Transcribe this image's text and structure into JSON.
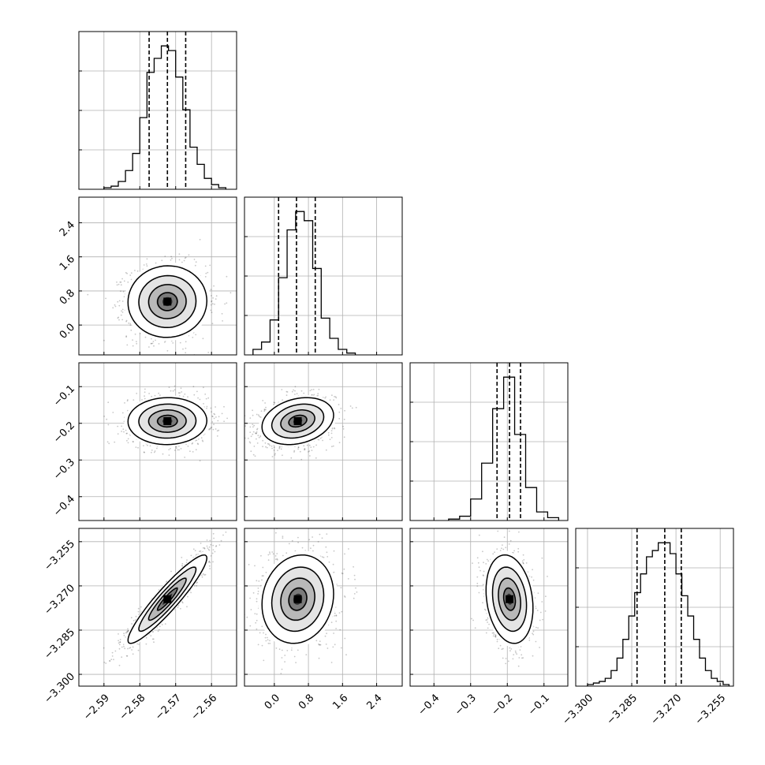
{
  "chart_data": {
    "type": "corner",
    "title": "",
    "grid": true,
    "parameters": [
      {
        "index": 0,
        "range": [
          -2.597,
          -2.553
        ],
        "median": -2.5723,
        "q16": -2.5774,
        "q84": -2.5672,
        "ticks": [
          -2.59,
          -2.58,
          -2.57,
          -2.56
        ],
        "tick_labels": [
          "−2.59",
          "−2.58",
          "−2.57",
          "−2.56"
        ],
        "hist": {
          "edges": [
            -2.59,
            -2.588,
            -2.586,
            -2.584,
            -2.582,
            -2.58,
            -2.578,
            -2.576,
            -2.574,
            -2.572,
            -2.57,
            -2.568,
            -2.566,
            -2.564,
            -2.562,
            -2.56,
            -2.558,
            -2.556
          ],
          "counts": [
            1,
            2,
            5,
            12,
            23,
            46,
            75,
            84,
            92,
            89,
            72,
            51,
            27,
            16,
            7,
            3,
            1
          ]
        }
      },
      {
        "index": 1,
        "range": [
          -0.7,
          3.0
        ],
        "median": 0.52,
        "q16": 0.1,
        "q84": 0.96,
        "ticks": [
          0.0,
          0.8,
          1.6,
          2.4
        ],
        "tick_labels": [
          "0.0",
          "0.8",
          "1.6",
          "2.4"
        ],
        "hist": {
          "edges": [
            -0.5,
            -0.3,
            -0.1,
            0.1,
            0.3,
            0.5,
            0.7,
            0.9,
            1.1,
            1.3,
            1.5,
            1.7,
            1.9
          ],
          "counts": [
            3,
            7,
            19,
            42,
            68,
            78,
            73,
            47,
            20,
            9,
            3,
            1
          ]
        }
      },
      {
        "index": 2,
        "range": [
          -0.465,
          -0.035
        ],
        "median": -0.194,
        "q16": -0.228,
        "q84": -0.164,
        "ticks": [
          -0.4,
          -0.3,
          -0.2,
          -0.1
        ],
        "tick_labels": [
          "−0.4",
          "−0.3",
          "−0.2",
          "−0.1"
        ],
        "hist": {
          "edges": [
            -0.36,
            -0.33,
            -0.3,
            -0.27,
            -0.24,
            -0.21,
            -0.18,
            -0.15,
            -0.12,
            -0.09,
            -0.06
          ],
          "counts": [
            1,
            3,
            15,
            40,
            78,
            100,
            60,
            23,
            6,
            2
          ]
        }
      },
      {
        "index": 3,
        "range": [
          -3.304,
          -3.2505
        ],
        "median": -3.2738,
        "q16": -3.2832,
        "q84": -3.2682,
        "ticks": [
          -3.3,
          -3.285,
          -3.27,
          -3.255
        ],
        "tick_labels": [
          "−3.300",
          "−3.285",
          "−3.270",
          "−3.255"
        ],
        "hist": {
          "edges": [
            -3.3,
            -3.298,
            -3.296,
            -3.294,
            -3.292,
            -3.29,
            -3.288,
            -3.286,
            -3.284,
            -3.282,
            -3.28,
            -3.278,
            -3.276,
            -3.274,
            -3.272,
            -3.27,
            -3.268,
            -3.266,
            -3.264,
            -3.262,
            -3.26,
            -3.258,
            -3.256,
            -3.254,
            -3.252
          ],
          "counts": [
            1,
            2,
            3,
            5,
            10,
            18,
            30,
            45,
            60,
            72,
            83,
            87,
            92,
            92,
            85,
            72,
            58,
            45,
            30,
            18,
            10,
            5,
            3,
            1
          ]
        }
      }
    ],
    "pairs": [
      {
        "x": 0,
        "y": 1,
        "mean": [
          -2.5723,
          0.55
        ],
        "sd": [
          0.0055,
          0.42
        ],
        "rho": 0.02
      },
      {
        "x": 0,
        "y": 2,
        "mean": [
          -2.5723,
          -0.194
        ],
        "sd": [
          0.0055,
          0.032
        ],
        "rho": 0.02
      },
      {
        "x": 1,
        "y": 2,
        "mean": [
          0.55,
          -0.194
        ],
        "sd": [
          0.42,
          0.032
        ],
        "rho": 0.25
      },
      {
        "x": 0,
        "y": 3,
        "mean": [
          -2.5723,
          -3.2745
        ],
        "sd": [
          0.0055,
          0.0075
        ],
        "rho": 0.93
      },
      {
        "x": 1,
        "y": 3,
        "mean": [
          0.55,
          -3.2745
        ],
        "sd": [
          0.42,
          0.0075
        ],
        "rho": 0.12
      },
      {
        "x": 2,
        "y": 3,
        "mean": [
          -0.194,
          -3.2745
        ],
        "sd": [
          0.032,
          0.0075
        ],
        "rho": -0.2
      }
    ]
  }
}
